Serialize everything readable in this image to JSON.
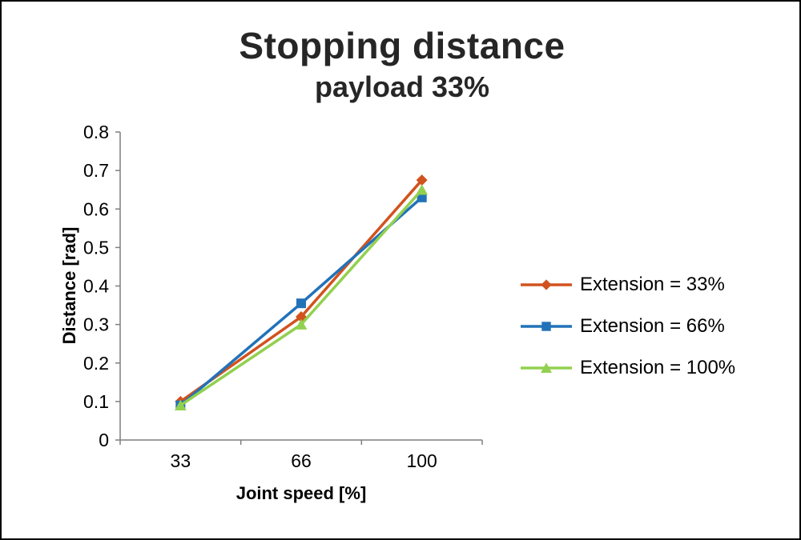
{
  "chart_data": {
    "type": "line",
    "title": "Stopping distance",
    "subtitle": "payload 33%",
    "xlabel": "Joint speed [%]",
    "ylabel": "Distance [rad]",
    "categories": [
      "33",
      "66",
      "100"
    ],
    "ylim": [
      0,
      0.8
    ],
    "ytick_step": 0.1,
    "grid": false,
    "legend_position": "right",
    "series": [
      {
        "name": "Extension = 33%",
        "marker": "diamond",
        "color": "#d2521e",
        "values": [
          0.1,
          0.32,
          0.675
        ]
      },
      {
        "name": "Extension = 66%",
        "marker": "square",
        "color": "#2272b8",
        "values": [
          0.09,
          0.355,
          0.63
        ]
      },
      {
        "name": "Extension = 100%",
        "marker": "triangle",
        "color": "#92d050",
        "values": [
          0.09,
          0.3,
          0.65
        ]
      }
    ]
  },
  "colors": {
    "axis": "#7f7f7f",
    "text": "#000000",
    "title": "#262626",
    "background": "#ffffff",
    "border": "#000000"
  }
}
